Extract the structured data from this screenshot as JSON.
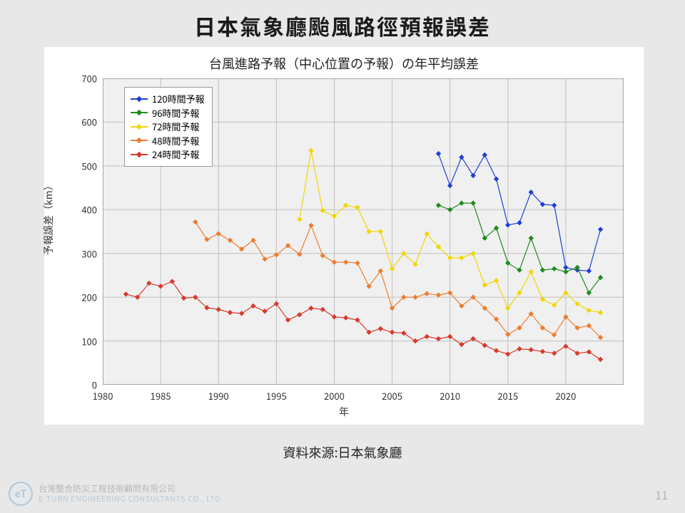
{
  "page_title": "日本氣象廳颱風路徑預報誤差",
  "chart": {
    "type": "line",
    "title": "台風進路予報（中心位置の予報）の年平均誤差",
    "xlabel": "年",
    "ylabel": "予報誤差（km）",
    "background_color": "#f0f0f0",
    "plot_bg": "#ffffff",
    "grid_color": "#bfbfbf",
    "border_color": "#7a7a7a",
    "xlim": [
      1980,
      2025
    ],
    "ylim": [
      0,
      700
    ],
    "xticks": [
      1980,
      1985,
      1990,
      1995,
      2000,
      2005,
      2010,
      2015,
      2020
    ],
    "yticks": [
      0,
      100,
      200,
      300,
      400,
      500,
      600,
      700
    ],
    "line_width": 1.2,
    "marker_size": 3.0,
    "marker_shape": "diamond",
    "legend_pos": "upper-left",
    "title_fontsize": 18,
    "label_fontsize": 14,
    "tick_fontsize": 13,
    "series": [
      {
        "name": "120時間予報",
        "color": "#1f3fd6",
        "years": [
          2009,
          2010,
          2011,
          2012,
          2013,
          2014,
          2015,
          2016,
          2017,
          2018,
          2019,
          2020,
          2021,
          2022,
          2023
        ],
        "values": [
          528,
          455,
          520,
          478,
          525,
          470,
          365,
          370,
          440,
          412,
          410,
          268,
          262,
          260,
          355
        ]
      },
      {
        "name": "96時間予報",
        "color": "#1e8b1e",
        "years": [
          2009,
          2010,
          2011,
          2012,
          2013,
          2014,
          2015,
          2016,
          2017,
          2018,
          2019,
          2020,
          2021,
          2022,
          2023
        ],
        "values": [
          410,
          400,
          415,
          415,
          335,
          358,
          278,
          262,
          335,
          262,
          265,
          258,
          268,
          210,
          245
        ]
      },
      {
        "name": "72時間予報",
        "color": "#f2d600",
        "years": [
          1997,
          1998,
          1999,
          2000,
          2001,
          2002,
          2003,
          2004,
          2005,
          2006,
          2007,
          2008,
          2009,
          2010,
          2011,
          2012,
          2013,
          2014,
          2015,
          2016,
          2017,
          2018,
          2019,
          2020,
          2021,
          2022,
          2023
        ],
        "values": [
          378,
          535,
          398,
          385,
          410,
          405,
          350,
          350,
          265,
          300,
          275,
          345,
          315,
          290,
          290,
          300,
          228,
          238,
          175,
          210,
          258,
          195,
          182,
          210,
          185,
          170,
          165
        ]
      },
      {
        "name": "48時間予報",
        "color": "#ed7d31",
        "years": [
          1988,
          1989,
          1990,
          1991,
          1992,
          1993,
          1994,
          1995,
          1996,
          1997,
          1998,
          1999,
          2000,
          2001,
          2002,
          2003,
          2004,
          2005,
          2006,
          2007,
          2008,
          2009,
          2010,
          2011,
          2012,
          2013,
          2014,
          2015,
          2016,
          2017,
          2018,
          2019,
          2020,
          2021,
          2022,
          2023
        ],
        "values": [
          372,
          332,
          345,
          330,
          310,
          330,
          287,
          297,
          318,
          298,
          364,
          295,
          280,
          280,
          278,
          225,
          260,
          175,
          200,
          200,
          208,
          205,
          210,
          180,
          200,
          175,
          150,
          115,
          130,
          162,
          130,
          114,
          155,
          130,
          135,
          108
        ]
      },
      {
        "name": "24時間予報",
        "color": "#d83a2d",
        "years": [
          1982,
          1983,
          1984,
          1985,
          1986,
          1987,
          1988,
          1989,
          1990,
          1991,
          1992,
          1993,
          1994,
          1995,
          1996,
          1997,
          1998,
          1999,
          2000,
          2001,
          2002,
          2003,
          2004,
          2005,
          2006,
          2007,
          2008,
          2009,
          2010,
          2011,
          2012,
          2013,
          2014,
          2015,
          2016,
          2017,
          2018,
          2019,
          2020,
          2021,
          2022,
          2023
        ],
        "values": [
          207,
          200,
          232,
          225,
          236,
          198,
          200,
          176,
          172,
          165,
          163,
          180,
          168,
          185,
          148,
          160,
          175,
          172,
          155,
          153,
          148,
          120,
          128,
          120,
          118,
          100,
          110,
          105,
          110,
          92,
          105,
          90,
          78,
          70,
          82,
          80,
          76,
          72,
          88,
          72,
          75,
          58
        ]
      }
    ]
  },
  "source_label": "資料來源:日本氣象廳",
  "footer": {
    "company_zh": "台灣整合防災工程技術顧問有限公司",
    "company_en": "E-TURN ENGINEERING CONSULTANTS CO., LTD",
    "logo_text": "eT"
  },
  "page_number": "11"
}
